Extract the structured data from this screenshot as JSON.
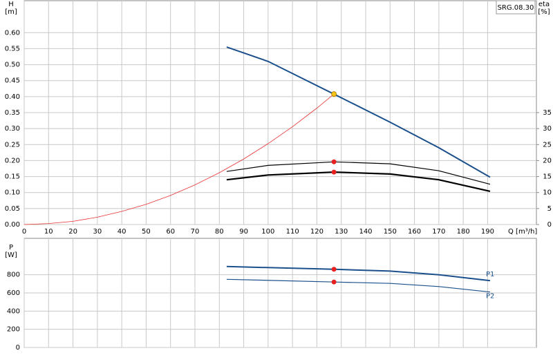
{
  "chart_data": [
    {
      "type": "line",
      "title": "SRG.08.30",
      "ylabel": "H",
      "yunit": "[m]",
      "y2label": "eta",
      "y2unit": "[%]",
      "xlabel": "Q [m³/h]",
      "xlim": [
        0,
        210
      ],
      "xticks": [
        0,
        10,
        20,
        30,
        40,
        50,
        60,
        70,
        80,
        90,
        100,
        110,
        120,
        130,
        140,
        150,
        160,
        170,
        180,
        190
      ],
      "ylim": [
        0,
        0.7
      ],
      "yticks": [
        {
          "value": 0,
          "label": "0.00"
        },
        {
          "value": 0.05,
          "label": "0.05"
        },
        {
          "value": 0.1,
          "label": "0.10"
        },
        {
          "value": 0.15,
          "label": "0.15"
        },
        {
          "value": 0.2,
          "label": "0.20"
        },
        {
          "value": 0.25,
          "label": "0.25"
        },
        {
          "value": 0.3,
          "label": "0.30"
        },
        {
          "value": 0.35,
          "label": "0.35"
        },
        {
          "value": 0.4,
          "label": "0.40"
        },
        {
          "value": 0.45,
          "label": "0.45"
        },
        {
          "value": 0.5,
          "label": "0.50"
        },
        {
          "value": 0.55,
          "label": "0.55"
        },
        {
          "value": 0.6,
          "label": "0.60"
        }
      ],
      "y2lim": [
        0,
        70
      ],
      "y2ticks": [
        0,
        5,
        10,
        15,
        20,
        25,
        30,
        35
      ],
      "grid": true,
      "series": [
        {
          "color": "#e83030",
          "line_width": 0.8,
          "x": [
            0,
            10,
            20,
            30,
            40,
            50,
            60,
            70,
            80,
            90,
            100,
            110,
            120,
            127
          ],
          "values": [
            0,
            0.003,
            0.01,
            0.023,
            0.041,
            0.063,
            0.091,
            0.124,
            0.162,
            0.205,
            0.253,
            0.306,
            0.364,
            0.408
          ]
        },
        {
          "color": "#1a4f8b",
          "line_width": 2,
          "x": [
            83,
            100,
            127,
            150,
            170,
            191
          ],
          "values": [
            0.555,
            0.51,
            0.408,
            0.32,
            0.24,
            0.148
          ]
        },
        {
          "color": "#000000",
          "line_width": 1.2,
          "axis": "y2",
          "x": [
            83,
            100,
            127,
            150,
            170,
            191
          ],
          "values": [
            16.6,
            18.5,
            19.6,
            19.0,
            16.8,
            12.6
          ]
        },
        {
          "color": "#000000",
          "line_width": 2.2,
          "axis": "y2",
          "x": [
            83,
            100,
            127,
            150,
            170,
            191
          ],
          "values": [
            14,
            15.5,
            16.4,
            15.8,
            14,
            10.4
          ]
        },
        {
          "marker_color": "#f5c518",
          "x": [
            127
          ],
          "values": [
            0.408
          ]
        },
        {
          "marker_color": "#e82020",
          "axis": "y2",
          "x": [
            127,
            127
          ],
          "values": [
            19.6,
            16.4
          ]
        }
      ]
    },
    {
      "type": "line",
      "ylabel": "P",
      "yunit": "[W]",
      "xlim": [
        0,
        210
      ],
      "ylim": [
        0,
        1200
      ],
      "yticks": [
        0,
        200,
        400,
        600,
        800
      ],
      "grid": true,
      "series": [
        {
          "name": "P1",
          "color": "#1a4f8b",
          "line_width": 2,
          "x": [
            83,
            127,
            150,
            170,
            191
          ],
          "values": [
            890,
            860,
            840,
            800,
            735
          ]
        },
        {
          "name": "P2",
          "color": "#1a4f8b",
          "line_width": 1.2,
          "x": [
            83,
            127,
            150,
            170,
            191
          ],
          "values": [
            750,
            720,
            705,
            670,
            610
          ]
        },
        {
          "marker_color": "#e82020",
          "x": [
            127,
            127
          ],
          "values": [
            860,
            720
          ]
        }
      ]
    }
  ]
}
